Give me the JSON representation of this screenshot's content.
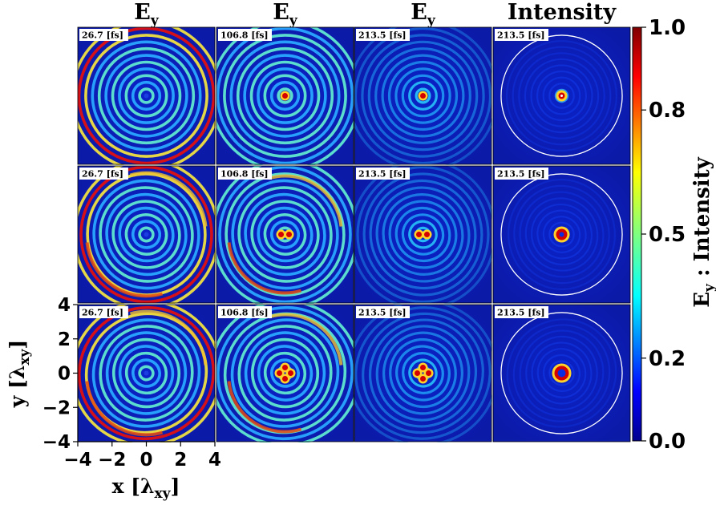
{
  "chart_data": {
    "type": "heatmap",
    "grid": {
      "rows": 3,
      "cols": 4
    },
    "column_titles": [
      {
        "main": "E",
        "sub": "y"
      },
      {
        "main": "E",
        "sub": "y"
      },
      {
        "main": "E",
        "sub": "y"
      },
      {
        "main": "Intensity",
        "sub": ""
      }
    ],
    "panel_time_labels": [
      [
        "26.7 [fs]",
        "106.8 [fs]",
        "213.5 [fs]",
        "213.5 [fs]"
      ],
      [
        "26.7 [fs]",
        "106.8 [fs]",
        "213.5 [fs]",
        "213.5 [fs]"
      ],
      [
        "26.7 [fs]",
        "106.8 [fs]",
        "213.5 [fs]",
        "213.5 [fs]"
      ]
    ],
    "x_axis": {
      "label_main": "x [λ",
      "label_sub": "xy",
      "label_end": "]",
      "range": [
        -4,
        4
      ],
      "ticks": [
        -4,
        -2,
        0,
        2,
        4
      ],
      "tick_labels": [
        "−4",
        "−2",
        "0",
        "2",
        "4"
      ]
    },
    "y_axis": {
      "label_main": "y [λ",
      "label_sub": "xy",
      "label_end": "]",
      "range": [
        -4,
        4
      ],
      "ticks": [
        -4,
        -2,
        0,
        2,
        4
      ],
      "tick_labels": [
        "−4",
        "−2",
        "0",
        "2",
        "4"
      ]
    },
    "colorbar": {
      "label_main": "E",
      "label_sub": "y",
      "label_end": " : Intensity",
      "range": [
        0,
        1
      ],
      "ticks": [
        0.0,
        0.2,
        0.5,
        0.8,
        1.0
      ],
      "tick_labels": [
        "0.0",
        "0.2",
        "0.5",
        "0.8",
        "1.0"
      ],
      "colormap": "jet"
    },
    "intensity_panels_circle": {
      "shown": true,
      "radius": 3.8,
      "color": "#ffffff"
    },
    "rows": [
      {
        "pattern": "concentric rings",
        "center_spots": 1
      },
      {
        "pattern": "spiral rings",
        "center_spots": 2
      },
      {
        "pattern": "spiral rings",
        "center_spots": 4
      }
    ]
  }
}
